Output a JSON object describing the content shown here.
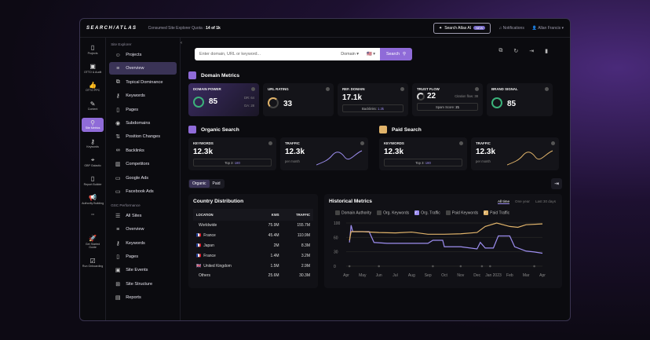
{
  "topbar": {
    "logo": "SEARCH/ATLAS",
    "quota_label": "Consumed Site Explorer Quota",
    "quota_value": "14 of 1k",
    "ai_button": "Search Atlas AI",
    "ai_badge": "NEW",
    "notifications": "Notifications",
    "user": "Allan Francis"
  },
  "rail": [
    {
      "label": "Projects",
      "icon": "file-icon"
    },
    {
      "label": "OTTO & Audit",
      "icon": "audit-icon"
    },
    {
      "label": "OTTO PPC",
      "icon": "thumb-icon"
    },
    {
      "label": "Content",
      "icon": "pen-icon"
    },
    {
      "label": "Site Metrics",
      "icon": "search-icon",
      "active": true
    },
    {
      "label": "Keywords",
      "icon": "key-icon"
    },
    {
      "label": "GBP Galactic",
      "icon": "pin-icon"
    },
    {
      "label": "Report Builder",
      "icon": "report-icon"
    },
    {
      "label": "Authority Building",
      "icon": "megaphone-icon"
    },
    {
      "label": "•••",
      "icon": "more-icon"
    },
    {
      "label": "Get Started Guide",
      "icon": "rocket-icon"
    },
    {
      "label": "Run Onboarding",
      "icon": "check-icon"
    }
  ],
  "sidebar": {
    "section1": "Site Explorer",
    "items1": [
      {
        "label": "Projects",
        "icon": "☺"
      },
      {
        "label": "Overview",
        "icon": "≡",
        "active": true
      },
      {
        "label": "Topical Dominance",
        "icon": "⧉"
      },
      {
        "label": "Keywords",
        "icon": "⚷"
      },
      {
        "label": "Pages",
        "icon": "▯"
      },
      {
        "label": "Subdomains",
        "icon": "◉"
      },
      {
        "label": "Position Changes",
        "icon": "⇅"
      },
      {
        "label": "Backlinks",
        "icon": "∞"
      },
      {
        "label": "Competitors",
        "icon": "▥"
      },
      {
        "label": "Google Ads",
        "icon": "▭"
      },
      {
        "label": "Facebook Ads",
        "icon": "▭"
      }
    ],
    "section2": "GSC Performance",
    "items2": [
      {
        "label": "All Sites",
        "icon": "☰"
      },
      {
        "label": "Overview",
        "icon": "≡"
      },
      {
        "label": "Keywords",
        "icon": "⚷"
      },
      {
        "label": "Pages",
        "icon": "▯"
      },
      {
        "label": "Site Events",
        "icon": "▣"
      },
      {
        "label": "Site Structure",
        "icon": "⊞"
      },
      {
        "label": "Reports",
        "icon": "▤"
      }
    ]
  },
  "search": {
    "placeholder": "Enter domain, URL or keyword...",
    "mode": "Domain",
    "flag": "🇺🇸",
    "button": "Search"
  },
  "domain_metrics": {
    "title": "Domain Metrics",
    "domain_power": {
      "label": "DOMAIN POWER",
      "value": "85",
      "dr": "DR: 64",
      "da": "DA: 28"
    },
    "url_rating": {
      "label": "URL RATING",
      "value": "33"
    },
    "ref_domain": {
      "label": "REF. DOMAIN",
      "value": "17.1k",
      "backlinks_label": "Backlinks:",
      "backlinks": "1.3k"
    },
    "trust_flow": {
      "label": "TRUST FLOW",
      "value": "22",
      "citation": "Citation flow: 38",
      "spam_label": "Spam Score:",
      "spam": "21"
    },
    "brand_signal": {
      "label": "BRAND SIGNAL",
      "value": "85"
    }
  },
  "organic": {
    "title": "Organic Search",
    "keywords_label": "KEYWORDS",
    "keywords": "12.3k",
    "top3_label": "Top 3:",
    "top3": "180",
    "traffic_label": "TRAFFIC",
    "traffic": "12.3k",
    "per": "per month"
  },
  "paid": {
    "title": "Paid Search",
    "keywords_label": "KEYWORDS",
    "keywords": "12.3k",
    "top3_label": "Top 3:",
    "top3": "180",
    "traffic_label": "TRAFFIC",
    "traffic": "12.3k",
    "per": "per month"
  },
  "tabs": [
    "Organic",
    "Paid"
  ],
  "country": {
    "title": "Country Distribution",
    "headers": [
      "LOCATION",
      "KWS",
      "TRAFFIC"
    ],
    "rows": [
      [
        "",
        "Worldwide",
        "75.9M",
        "155.7M"
      ],
      [
        "🇫🇷",
        "France",
        "45.4M",
        "110.9M"
      ],
      [
        "🇫🇷",
        "Japan",
        "2M",
        "8.3M"
      ],
      [
        "🇫🇷",
        "France",
        "1.4M",
        "3.2M"
      ],
      [
        "🇬🇧",
        "United Kingdom",
        "1.5M",
        "2.9M"
      ],
      [
        "",
        "Others",
        "25.6M",
        "30.3M"
      ]
    ]
  },
  "chart_data": {
    "type": "line",
    "title": "Historical Metrics",
    "ranges": [
      "All time",
      "One year",
      "Last 30 days"
    ],
    "active_range": "All time",
    "legend": [
      {
        "name": "Domain Authority",
        "checked": false,
        "color": "#444444"
      },
      {
        "name": "Org. Keywords",
        "checked": false,
        "color": "#444444"
      },
      {
        "name": "Org. Traffic",
        "checked": true,
        "color": "#9d8ef0"
      },
      {
        "name": "Paid Keywords",
        "checked": false,
        "color": "#444444"
      },
      {
        "name": "Paid Traffic",
        "checked": true,
        "color": "#e0b36a"
      }
    ],
    "categories": [
      "Apr",
      "May",
      "Jun",
      "Jul",
      "Aug",
      "Sep",
      "Oct",
      "Nov",
      "Dec",
      "Jan 2023",
      "Feb",
      "Mar",
      "Apr"
    ],
    "yticks": [
      "100",
      "60",
      "30",
      "0"
    ],
    "ylim": [
      0,
      100
    ],
    "series": [
      {
        "name": "Org. Traffic",
        "color": "#9d8ef0",
        "points": [
          [
            0.2,
            55
          ],
          [
            0.3,
            95
          ],
          [
            0.4,
            80
          ],
          [
            1,
            80
          ],
          [
            1.4,
            80
          ],
          [
            1.7,
            55
          ],
          [
            2.5,
            53
          ],
          [
            5,
            53
          ],
          [
            5.3,
            60
          ],
          [
            5.9,
            60
          ],
          [
            6,
            45
          ],
          [
            7,
            45
          ],
          [
            8,
            40
          ],
          [
            8.2,
            55
          ],
          [
            8.5,
            42
          ],
          [
            9,
            42
          ],
          [
            9.3,
            70
          ],
          [
            10,
            70
          ],
          [
            10.3,
            45
          ],
          [
            11,
            35
          ],
          [
            11.5,
            33
          ],
          [
            12,
            30
          ]
        ]
      },
      {
        "name": "Paid Traffic",
        "color": "#e0b36a",
        "points": [
          [
            0.2,
            60
          ],
          [
            0.3,
            80
          ],
          [
            1,
            80
          ],
          [
            2,
            78
          ],
          [
            3,
            77
          ],
          [
            4,
            79
          ],
          [
            5,
            74
          ],
          [
            6,
            74
          ],
          [
            7,
            75
          ],
          [
            8,
            78
          ],
          [
            8.5,
            92
          ],
          [
            9.2,
            100
          ],
          [
            10,
            92
          ],
          [
            10.5,
            90
          ],
          [
            11,
            96
          ],
          [
            12,
            98
          ]
        ]
      }
    ]
  }
}
